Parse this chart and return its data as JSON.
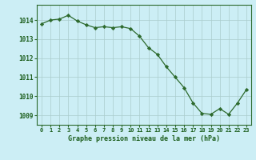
{
  "x": [
    0,
    1,
    2,
    3,
    4,
    5,
    6,
    7,
    8,
    9,
    10,
    11,
    12,
    13,
    14,
    15,
    16,
    17,
    18,
    19,
    20,
    21,
    22,
    23
  ],
  "y": [
    1013.8,
    1014.0,
    1014.05,
    1014.25,
    1013.95,
    1013.75,
    1013.6,
    1013.65,
    1013.6,
    1013.65,
    1013.55,
    1013.15,
    1012.55,
    1012.2,
    1011.55,
    1011.0,
    1010.45,
    1009.65,
    1009.1,
    1009.05,
    1009.35,
    1009.05,
    1009.65,
    1010.35
  ],
  "line_color": "#2d6a2d",
  "marker": "D",
  "marker_size": 2.2,
  "bg_color": "#cceef5",
  "grid_color": "#aacccc",
  "xlabel": "Graphe pression niveau de la mer (hPa)",
  "xlabel_color": "#1a5c1a",
  "tick_label_color": "#1a5c1a",
  "ylim": [
    1008.5,
    1014.8
  ],
  "yticks": [
    1009,
    1010,
    1011,
    1012,
    1013,
    1014
  ],
  "xlim": [
    -0.5,
    23.5
  ]
}
